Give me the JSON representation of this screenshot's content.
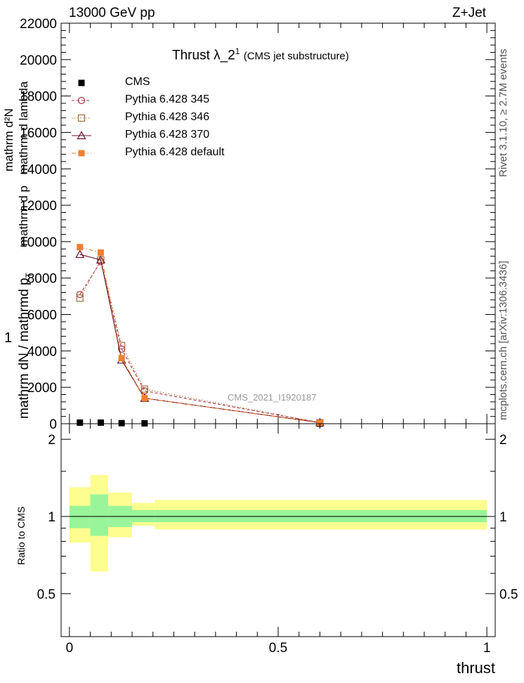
{
  "header": {
    "left": "13000 GeV pp",
    "right": "Z+Jet"
  },
  "side": {
    "top": "Rivet 3.1.10, ≥ 2.7M events",
    "bottom": "mcplots.cern.ch [arXiv:1306.3436]"
  },
  "watermark": "CMS_2021_I1920187",
  "chart_data": [
    {
      "type": "line",
      "title": "Thrust λ_2",
      "title_sup": "1",
      "title_suffix": "(CMS jet substructure)",
      "ylabel_parts": [
        "1",
        "mathrm dN / mathrmd p",
        "T",
        "mathrm d p",
        "mathrm d lambda",
        "mathrm d²N"
      ],
      "xlabel": "",
      "xlim": [
        -0.02,
        1.02
      ],
      "ylim": [
        0,
        22000
      ],
      "y_ticks": [
        0,
        2000,
        4000,
        6000,
        8000,
        10000,
        12000,
        14000,
        16000,
        18000,
        20000,
        22000
      ],
      "y_tick_labels": [
        "0",
        "2000",
        "4000",
        "6000",
        "8000",
        "10000",
        "12000",
        "14000",
        "16000",
        "18000",
        "20000",
        "22000"
      ],
      "legend_position": "top-left",
      "grid": false,
      "series": [
        {
          "name": "CMS",
          "color": "#000000",
          "marker": "filled-square",
          "x": [
            0.025,
            0.075,
            0.125,
            0.18,
            0.6
          ],
          "y": [
            60,
            60,
            30,
            20,
            5
          ]
        },
        {
          "name": "Pythia 6.428 345",
          "color": "#b03040",
          "marker": "open-circle",
          "dash": "dashed",
          "x": [
            0.025,
            0.075,
            0.125,
            0.18,
            0.6
          ],
          "y": [
            7100,
            8900,
            4100,
            1800,
            60
          ]
        },
        {
          "name": "Pythia 6.428 346",
          "color": "#a0703a",
          "marker": "open-square",
          "dash": "dotted",
          "x": [
            0.025,
            0.075,
            0.125,
            0.18,
            0.6
          ],
          "y": [
            6900,
            9000,
            4300,
            1900,
            60
          ]
        },
        {
          "name": "Pythia 6.428 370",
          "color": "#6a1028",
          "marker": "open-triangle",
          "dash": "solid",
          "x": [
            0.025,
            0.075,
            0.125,
            0.18,
            0.6
          ],
          "y": [
            9300,
            9000,
            3500,
            1400,
            60
          ]
        },
        {
          "name": "Pythia 6.428 default",
          "color": "#f08030",
          "marker": "filled-square",
          "dash": "dashdot",
          "x": [
            0.025,
            0.075,
            0.125,
            0.18,
            0.6
          ],
          "y": [
            9700,
            9400,
            3600,
            1400,
            50
          ]
        }
      ]
    },
    {
      "type": "area",
      "title": "",
      "xlabel": "thrust",
      "ylabel": "Ratio to CMS",
      "xlim": [
        -0.02,
        1.02
      ],
      "ylim": [
        0.34,
        2.3
      ],
      "y_ticks": [
        0.5,
        1,
        2
      ],
      "y_tick_labels": [
        "0.5",
        "1",
        "2"
      ],
      "x_ticks": [
        0,
        0.5,
        1
      ],
      "x_tick_labels": [
        "0",
        "0.5",
        "1"
      ],
      "reference_line": 1,
      "bins": [
        {
          "x0": 0.0,
          "x1": 0.05,
          "stat_lo": 0.9,
          "stat_hi": 1.1,
          "tot_lo": 0.79,
          "tot_hi": 1.3
        },
        {
          "x0": 0.05,
          "x1": 0.093,
          "stat_lo": 0.84,
          "stat_hi": 1.22,
          "tot_lo": 0.61,
          "tot_hi": 1.45
        },
        {
          "x0": 0.093,
          "x1": 0.15,
          "stat_lo": 0.91,
          "stat_hi": 1.1,
          "tot_lo": 0.83,
          "tot_hi": 1.24
        },
        {
          "x0": 0.15,
          "x1": 0.205,
          "stat_lo": 0.95,
          "stat_hi": 1.06,
          "tot_lo": 0.92,
          "tot_hi": 1.13
        },
        {
          "x0": 0.205,
          "x1": 1.0,
          "stat_lo": 0.95,
          "stat_hi": 1.06,
          "tot_lo": 0.89,
          "tot_hi": 1.16
        }
      ],
      "band_colors": {
        "stat": "#99f599",
        "total": "#fdfd90"
      }
    }
  ]
}
